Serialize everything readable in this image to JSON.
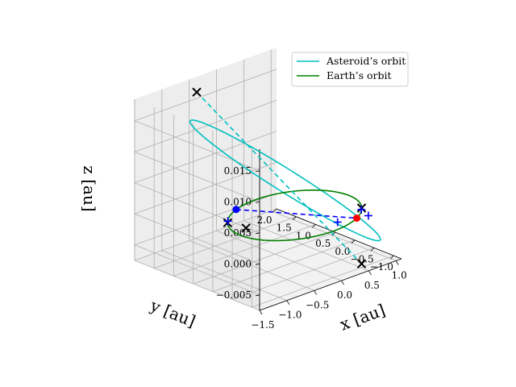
{
  "chart_data": {
    "type": "line",
    "projection": "3d",
    "xlabel": "$x$ [au]",
    "ylabel": "$y$ [au]",
    "zlabel": "$z$ [au]",
    "xlabel_display": "x [au]",
    "ylabel_display": "y [au]",
    "zlabel_display": "z [au]",
    "xlim": [
      -1.5,
      1.1
    ],
    "ylim": [
      -1.2,
      2.0
    ],
    "zlim": [
      -0.0075,
      0.0185
    ],
    "x_ticks": [
      "−1.5",
      "−1.0",
      "−0.5",
      "0.0",
      "0.5",
      "1.0"
    ],
    "x_tick_values": [
      -1.5,
      -1.0,
      -0.5,
      0.0,
      0.5,
      1.0
    ],
    "y_ticks": [
      "−1.0",
      "−0.5",
      "0.0",
      "0.5",
      "1.0",
      "1.5",
      "2.0"
    ],
    "y_tick_values": [
      -1.0,
      -0.5,
      0.0,
      0.5,
      1.0,
      1.5,
      2.0
    ],
    "z_ticks": [
      "−0.005",
      "0.000",
      "0.005",
      "0.010",
      "0.015"
    ],
    "z_tick_values": [
      -0.005,
      0.0,
      0.005,
      0.01,
      0.015
    ],
    "grid": true,
    "legend_position": "top-right",
    "series": [
      {
        "name": "Asteroid’s orbit",
        "color": "#00bfbf",
        "semi_major_axis": 1.46,
        "semi_minor_axis": 1.41,
        "center": [
          0.05,
          0.31
        ],
        "rotation_deg": 30,
        "z_amplitude": 0.0137,
        "z_center": 0.0047,
        "z_phase_deg": 150
      },
      {
        "name": "Earth’s orbit",
        "color": "#008000",
        "radius": 1.0,
        "center": [
          0.0,
          0.0
        ],
        "z": 0.0
      }
    ],
    "markers": [
      {
        "label": "Earth position",
        "marker": "circle",
        "color": "#ff0000",
        "x": 0.53,
        "y": -0.85,
        "z": 0.0
      },
      {
        "label": "Asteroid position",
        "marker": "circle",
        "color": "#0000ff",
        "x": -0.42,
        "y": 0.91,
        "z": 0.0
      },
      {
        "label": "Asteroid perihelion",
        "marker": "x",
        "color": "#000000",
        "x": 0.82,
        "y": -0.57,
        "z": -0.009
      },
      {
        "label": "Asteroid aphelion",
        "marker": "x",
        "color": "#000000",
        "x": -0.72,
        "y": 1.5,
        "z": 0.0184
      },
      {
        "label": "Earth node 1",
        "marker": "x",
        "color": "#000000",
        "x": 0.82,
        "y": -0.57,
        "z": 0.0
      },
      {
        "label": "Earth node 2",
        "marker": "x",
        "color": "#000000",
        "x": -0.82,
        "y": 0.57,
        "z": 0.0
      },
      {
        "label": "Ascending node",
        "marker": "plus",
        "color": "#0000ff",
        "x": 0.78,
        "y": -0.62,
        "z": 0.0
      },
      {
        "label": "Descending node",
        "marker": "plus",
        "color": "#0000ff",
        "x": -0.78,
        "y": 0.62,
        "z": 0.0
      },
      {
        "label": "Node plus 1",
        "marker": "plus",
        "color": "#0000ff",
        "x": 0.25,
        "y": -0.75,
        "z": 0.0
      },
      {
        "label": "Node plus 2",
        "marker": "plus",
        "color": "#0000ff",
        "x": 0.7,
        "y": -0.91,
        "z": 0.0
      },
      {
        "label": "Node cross 3",
        "marker": "x",
        "color": "#000000",
        "x": -0.77,
        "y": 0.17,
        "z": 0.0
      }
    ],
    "dashed_lines": [
      {
        "color": "#00bfbf",
        "from": [
          -0.72,
          1.5,
          0.0184
        ],
        "to": [
          0.82,
          -0.57,
          -0.009
        ]
      },
      {
        "color": "#0000ff",
        "from": [
          -0.42,
          0.91,
          0.0
        ],
        "to": [
          0.53,
          -0.85,
          0.0
        ]
      }
    ]
  }
}
